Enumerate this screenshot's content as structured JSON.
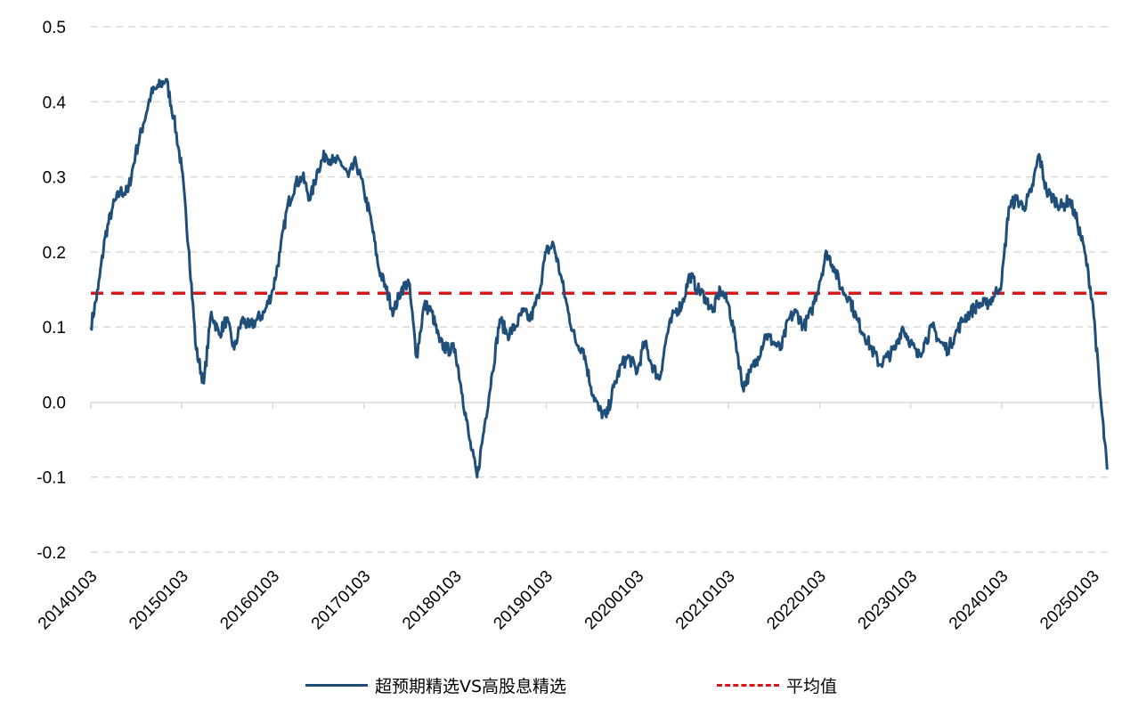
{
  "chart_data": {
    "type": "line",
    "title": "",
    "xlabel": "",
    "ylabel": "",
    "ylim": [
      -0.2,
      0.5
    ],
    "y_ticks": [
      -0.2,
      -0.1,
      0.0,
      0.1,
      0.2,
      0.3,
      0.4,
      0.5
    ],
    "y_tick_labels": [
      "-0.2",
      "-0.1",
      "0.0",
      "0.1",
      "0.2",
      "0.3",
      "0.4",
      "0.5"
    ],
    "x_tick_labels": [
      "20140103",
      "20150103",
      "20160103",
      "20170103",
      "20180103",
      "20190103",
      "20200103",
      "20210103",
      "20220103",
      "20230103",
      "20240103",
      "20250103"
    ],
    "grid": "horizontal dashed",
    "legend_position": "bottom",
    "series": [
      {
        "name": "超预期精选VS高股息精选",
        "color": "#1f4e79",
        "style": "solid",
        "points": [
          [
            "20140103",
            0.1
          ],
          [
            "20140201",
            0.15
          ],
          [
            "20140301",
            0.22
          ],
          [
            "20140401",
            0.26
          ],
          [
            "20140501",
            0.28
          ],
          [
            "20140601",
            0.28
          ],
          [
            "20140701",
            0.33
          ],
          [
            "20140801",
            0.37
          ],
          [
            "20140901",
            0.41
          ],
          [
            "20141001",
            0.42
          ],
          [
            "20141101",
            0.43
          ],
          [
            "20141201",
            0.38
          ],
          [
            "20150103",
            0.31
          ],
          [
            "20150201",
            0.2
          ],
          [
            "20150301",
            0.07
          ],
          [
            "20150401",
            0.025
          ],
          [
            "20150501",
            0.12
          ],
          [
            "20150601",
            0.09
          ],
          [
            "20150701",
            0.11
          ],
          [
            "20150801",
            0.07
          ],
          [
            "20150901",
            0.11
          ],
          [
            "20151001",
            0.1
          ],
          [
            "20151101",
            0.11
          ],
          [
            "20151201",
            0.12
          ],
          [
            "20160103",
            0.15
          ],
          [
            "20160201",
            0.2
          ],
          [
            "20160301",
            0.26
          ],
          [
            "20160401",
            0.29
          ],
          [
            "20160501",
            0.3
          ],
          [
            "20160601",
            0.27
          ],
          [
            "20160701",
            0.31
          ],
          [
            "20160801",
            0.33
          ],
          [
            "20160901",
            0.32
          ],
          [
            "20161001",
            0.32
          ],
          [
            "20161101",
            0.3
          ],
          [
            "20161201",
            0.32
          ],
          [
            "20170103",
            0.28
          ],
          [
            "20170201",
            0.24
          ],
          [
            "20170301",
            0.18
          ],
          [
            "20170401",
            0.15
          ],
          [
            "20170501",
            0.12
          ],
          [
            "20170601",
            0.15
          ],
          [
            "20170701",
            0.16
          ],
          [
            "20170801",
            0.06
          ],
          [
            "20170901",
            0.13
          ],
          [
            "20171001",
            0.12
          ],
          [
            "20171101",
            0.08
          ],
          [
            "20171201",
            0.07
          ],
          [
            "20180103",
            0.07
          ],
          [
            "20180201",
            0.01
          ],
          [
            "20180301",
            -0.05
          ],
          [
            "20180401",
            -0.1
          ],
          [
            "20180501",
            -0.03
          ],
          [
            "20180601",
            0.04
          ],
          [
            "20180701",
            0.11
          ],
          [
            "20180801",
            0.09
          ],
          [
            "20180901",
            0.1
          ],
          [
            "20181001",
            0.12
          ],
          [
            "20181101",
            0.11
          ],
          [
            "20181201",
            0.14
          ],
          [
            "20190103",
            0.2
          ],
          [
            "20190201",
            0.21
          ],
          [
            "20190301",
            0.17
          ],
          [
            "20190401",
            0.12
          ],
          [
            "20190501",
            0.08
          ],
          [
            "20190601",
            0.07
          ],
          [
            "20190701",
            0.02
          ],
          [
            "20190801",
            -0.01
          ],
          [
            "20190901",
            -0.02
          ],
          [
            "20191001",
            0.02
          ],
          [
            "20191101",
            0.05
          ],
          [
            "20191201",
            0.06
          ],
          [
            "20200103",
            0.04
          ],
          [
            "20200201",
            0.08
          ],
          [
            "20200301",
            0.05
          ],
          [
            "20200401",
            0.03
          ],
          [
            "20200501",
            0.09
          ],
          [
            "20200601",
            0.12
          ],
          [
            "20200701",
            0.13
          ],
          [
            "20200801",
            0.17
          ],
          [
            "20200901",
            0.15
          ],
          [
            "20201001",
            0.14
          ],
          [
            "20201101",
            0.12
          ],
          [
            "20201201",
            0.15
          ],
          [
            "20210103",
            0.13
          ],
          [
            "20210201",
            0.08
          ],
          [
            "20210301",
            0.02
          ],
          [
            "20210401",
            0.04
          ],
          [
            "20210501",
            0.06
          ],
          [
            "20210601",
            0.09
          ],
          [
            "20210701",
            0.08
          ],
          [
            "20210801",
            0.07
          ],
          [
            "20210901",
            0.11
          ],
          [
            "20211001",
            0.12
          ],
          [
            "20211101",
            0.1
          ],
          [
            "20211201",
            0.12
          ],
          [
            "20220103",
            0.16
          ],
          [
            "20220201",
            0.2
          ],
          [
            "20220301",
            0.18
          ],
          [
            "20220401",
            0.15
          ],
          [
            "20220501",
            0.14
          ],
          [
            "20220601",
            0.11
          ],
          [
            "20220701",
            0.09
          ],
          [
            "20220801",
            0.07
          ],
          [
            "20220901",
            0.05
          ],
          [
            "20221001",
            0.06
          ],
          [
            "20221101",
            0.07
          ],
          [
            "20221201",
            0.1
          ],
          [
            "20230103",
            0.08
          ],
          [
            "20230201",
            0.06
          ],
          [
            "20230301",
            0.08
          ],
          [
            "20230401",
            0.1
          ],
          [
            "20230501",
            0.08
          ],
          [
            "20230601",
            0.07
          ],
          [
            "20230701",
            0.09
          ],
          [
            "20230801",
            0.11
          ],
          [
            "20230901",
            0.12
          ],
          [
            "20231001",
            0.13
          ],
          [
            "20231101",
            0.13
          ],
          [
            "20231201",
            0.14
          ],
          [
            "20240103",
            0.16
          ],
          [
            "20240201",
            0.26
          ],
          [
            "20240301",
            0.27
          ],
          [
            "20240401",
            0.26
          ],
          [
            "20240501",
            0.28
          ],
          [
            "20240601",
            0.33
          ],
          [
            "20240701",
            0.28
          ],
          [
            "20240801",
            0.27
          ],
          [
            "20240901",
            0.26
          ],
          [
            "20241001",
            0.27
          ],
          [
            "20241101",
            0.24
          ],
          [
            "20241201",
            0.2
          ],
          [
            "20250103",
            0.13
          ],
          [
            "20250201",
            0.01
          ],
          [
            "20250301",
            -0.09
          ]
        ]
      },
      {
        "name": "平均值",
        "color": "#d7191c",
        "style": "dashed",
        "value": 0.145
      }
    ]
  }
}
